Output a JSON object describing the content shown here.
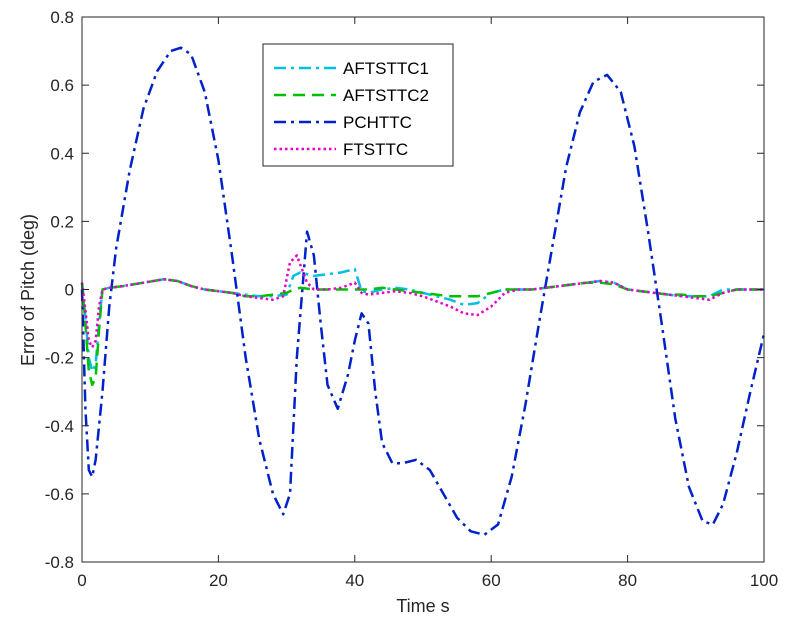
{
  "chart_data": {
    "type": "line",
    "title": "",
    "xlabel": "Time s",
    "ylabel": "Error of Pitch (deg)",
    "xlim": [
      0,
      100
    ],
    "ylim": [
      -0.8,
      0.8
    ],
    "xticks": [
      0,
      20,
      40,
      60,
      80,
      100
    ],
    "xtick_labels": [
      "0",
      "20",
      "40",
      "60",
      "80",
      "100"
    ],
    "yticks": [
      -0.8,
      -0.6,
      -0.4,
      -0.2,
      0,
      0.2,
      0.4,
      0.6,
      0.8
    ],
    "ytick_labels": [
      "-0.8",
      "-0.6",
      "-0.4",
      "-0.2",
      "0",
      "0.2",
      "0.4",
      "0.6",
      "0.8"
    ],
    "grid": false,
    "legend_position": "top-center",
    "series": [
      {
        "name": "AFTSTTC1",
        "color": "#00BFE6",
        "dash": "dashdot",
        "x": [
          0,
          0.5,
          1,
          1.5,
          2,
          2.5,
          3,
          4,
          6,
          9,
          12,
          14,
          16,
          18,
          20,
          22,
          24,
          26,
          28,
          30,
          31,
          32,
          34,
          36,
          38,
          40,
          41,
          42,
          44,
          46,
          48,
          50,
          52,
          54,
          56,
          58,
          60,
          62,
          64,
          66,
          68,
          70,
          72,
          74,
          76,
          78,
          80,
          82,
          84,
          86,
          88,
          90,
          92,
          94,
          96,
          98,
          100
        ],
        "y": [
          0.02,
          -0.08,
          -0.2,
          -0.24,
          -0.22,
          -0.1,
          0.0,
          0.005,
          0.01,
          0.02,
          0.03,
          0.025,
          0.01,
          0.0,
          -0.005,
          -0.01,
          -0.015,
          -0.02,
          -0.02,
          -0.015,
          0.04,
          0.05,
          0.04,
          0.045,
          0.05,
          0.06,
          -0.005,
          -0.01,
          0.0,
          0.005,
          0.0,
          -0.01,
          -0.02,
          -0.03,
          -0.045,
          -0.04,
          -0.01,
          0.0,
          0.0,
          0.0,
          0.005,
          0.01,
          0.015,
          0.02,
          0.025,
          0.02,
          0.0,
          -0.005,
          -0.01,
          -0.015,
          -0.02,
          -0.02,
          -0.02,
          0.0,
          0.0,
          0.0,
          0.0
        ]
      },
      {
        "name": "AFTSTTC2",
        "color": "#00C000",
        "dash": "dashed",
        "x": [
          0,
          0.5,
          1,
          1.5,
          2,
          2.5,
          3,
          4,
          6,
          9,
          12,
          14,
          16,
          18,
          20,
          22,
          24,
          26,
          28,
          30,
          31,
          32,
          34,
          36,
          38,
          40,
          42,
          44,
          46,
          48,
          50,
          52,
          54,
          56,
          58,
          60,
          62,
          64,
          66,
          68,
          70,
          72,
          74,
          76,
          78,
          80,
          82,
          84,
          86,
          88,
          90,
          92,
          94,
          96,
          98,
          100
        ],
        "y": [
          0.02,
          -0.1,
          -0.24,
          -0.28,
          -0.26,
          -0.12,
          0.0,
          0.005,
          0.01,
          0.02,
          0.03,
          0.025,
          0.01,
          0.0,
          -0.005,
          -0.01,
          -0.02,
          -0.02,
          -0.015,
          -0.01,
          0.0,
          0.005,
          0.0,
          0.0,
          0.0,
          0.0,
          0.0,
          0.005,
          0.0,
          -0.005,
          -0.01,
          -0.015,
          -0.02,
          -0.02,
          -0.02,
          -0.01,
          0.0,
          0.0,
          0.0,
          0.005,
          0.01,
          0.015,
          0.02,
          0.02,
          0.015,
          0.0,
          -0.005,
          -0.01,
          -0.015,
          -0.015,
          -0.02,
          -0.02,
          -0.01,
          0.0,
          0.0,
          0.0
        ]
      },
      {
        "name": "PCHTTC",
        "color": "#0022C8",
        "dash": "dashdot",
        "x": [
          0,
          0.5,
          1,
          1.5,
          2,
          3,
          4,
          5,
          7,
          9,
          11,
          13,
          14.5,
          16,
          18,
          20,
          22,
          24,
          26,
          28,
          29.5,
          30.5,
          31.5,
          33,
          34,
          35,
          36,
          37.5,
          39,
          40,
          41,
          42,
          43,
          44,
          45.5,
          47,
          49,
          51,
          53,
          55,
          57,
          59,
          61,
          63,
          65,
          67,
          69,
          71,
          73,
          75,
          77,
          79,
          81,
          83,
          85,
          87,
          89,
          91,
          92.5,
          94,
          96,
          98,
          100
        ],
        "y": [
          0.0,
          -0.35,
          -0.53,
          -0.55,
          -0.5,
          -0.3,
          -0.05,
          0.12,
          0.35,
          0.53,
          0.64,
          0.7,
          0.71,
          0.69,
          0.58,
          0.38,
          0.1,
          -0.2,
          -0.44,
          -0.6,
          -0.66,
          -0.6,
          -0.2,
          0.17,
          0.1,
          -0.1,
          -0.28,
          -0.35,
          -0.25,
          -0.15,
          -0.07,
          -0.1,
          -0.3,
          -0.45,
          -0.51,
          -0.51,
          -0.5,
          -0.53,
          -0.6,
          -0.67,
          -0.71,
          -0.72,
          -0.69,
          -0.55,
          -0.34,
          -0.1,
          0.13,
          0.36,
          0.52,
          0.61,
          0.63,
          0.58,
          0.42,
          0.17,
          -0.1,
          -0.38,
          -0.58,
          -0.68,
          -0.69,
          -0.63,
          -0.48,
          -0.3,
          -0.13
        ]
      },
      {
        "name": "FTSTTC",
        "color": "#E600C8",
        "dash": "dotted",
        "x": [
          0,
          0.5,
          1,
          1.5,
          2,
          2.5,
          3,
          4,
          6,
          9,
          12,
          14,
          16,
          18,
          20,
          22,
          24,
          26,
          28,
          29.5,
          30.5,
          31.5,
          33,
          34,
          36,
          38,
          40,
          41,
          42,
          44,
          46,
          48,
          50,
          52,
          54,
          56,
          58,
          60,
          62,
          64,
          66,
          68,
          70,
          72,
          74,
          76,
          78,
          80,
          82,
          84,
          86,
          88,
          90,
          92,
          94,
          96,
          98,
          100
        ],
        "y": [
          0.02,
          -0.06,
          -0.15,
          -0.17,
          -0.15,
          -0.05,
          0.0,
          0.005,
          0.01,
          0.02,
          0.03,
          0.025,
          0.01,
          0.0,
          -0.005,
          -0.01,
          -0.02,
          -0.025,
          -0.03,
          -0.02,
          0.08,
          0.1,
          0.02,
          0.0,
          0.0,
          0.005,
          0.02,
          -0.01,
          -0.015,
          -0.01,
          -0.005,
          -0.01,
          -0.02,
          -0.035,
          -0.05,
          -0.07,
          -0.075,
          -0.05,
          -0.01,
          0.0,
          0.0,
          0.005,
          0.01,
          0.015,
          0.02,
          0.025,
          0.02,
          0.0,
          -0.005,
          -0.01,
          -0.015,
          -0.02,
          -0.025,
          -0.03,
          -0.01,
          0.0,
          0.0,
          0.0
        ]
      }
    ]
  }
}
